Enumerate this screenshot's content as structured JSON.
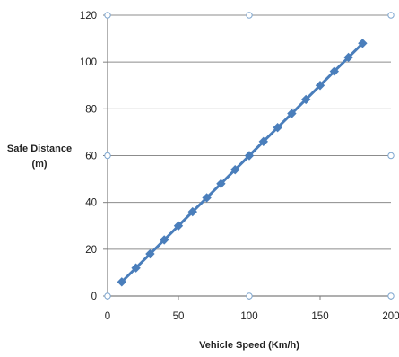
{
  "chart_data": {
    "type": "scatter",
    "xlabel": "Vehicle Speed (Km/h)",
    "ylabel_line1": "Safe Distance",
    "ylabel_line2": "(m)",
    "xlim": [
      0,
      200
    ],
    "ylim": [
      0,
      120
    ],
    "x_ticks": [
      0,
      50,
      100,
      150,
      200
    ],
    "y_ticks": [
      0,
      20,
      40,
      60,
      80,
      100,
      120
    ],
    "grid": "horizontal",
    "legend": "none",
    "series": [
      {
        "x": [
          10,
          20,
          30,
          40,
          50,
          60,
          70,
          80,
          90,
          100,
          110,
          120,
          130,
          140,
          150,
          160,
          170,
          180
        ],
        "y": [
          6,
          12,
          18,
          24,
          30,
          36,
          42,
          48,
          54,
          60,
          66,
          72,
          78,
          84,
          90,
          96,
          102,
          108
        ],
        "color": "#4a7ebb",
        "marker": "diamond",
        "line": "straight"
      }
    ]
  }
}
